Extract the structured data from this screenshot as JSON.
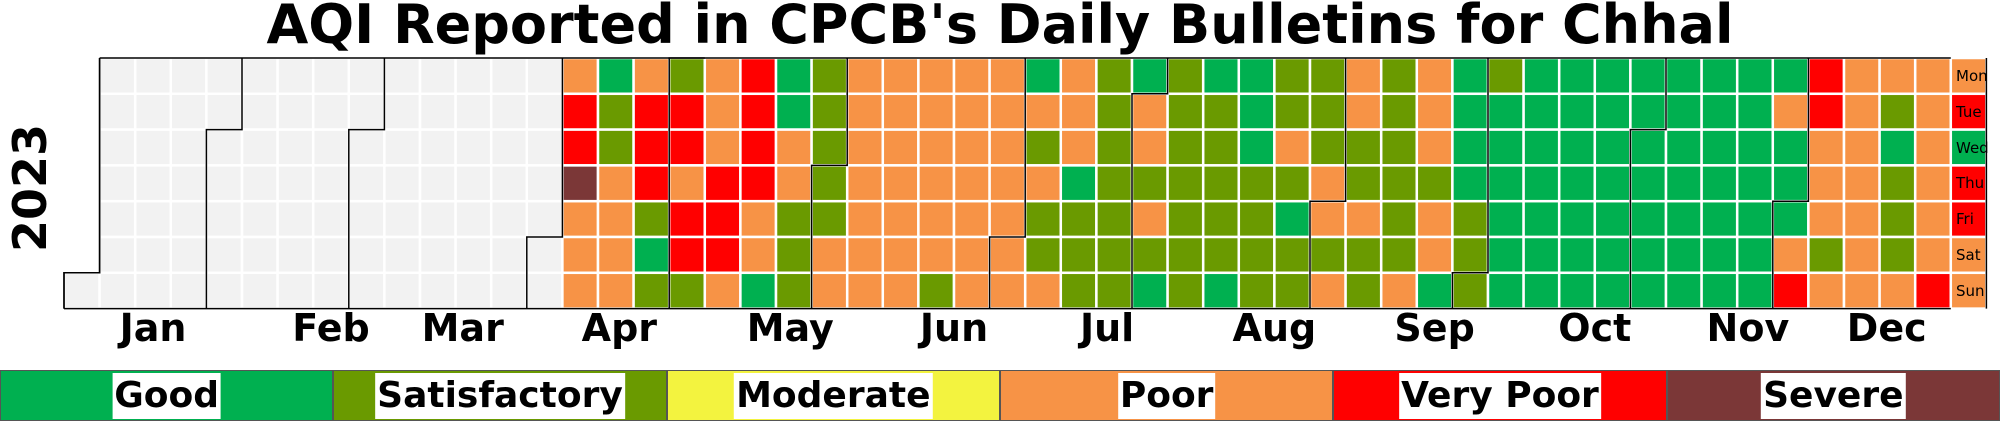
{
  "chart_data": {
    "type": "heatmap",
    "title": "AQI Reported in CPCB's Daily Bulletins for Chhal",
    "year": "2023",
    "months": [
      "Jan",
      "Feb",
      "Mar",
      "Apr",
      "May",
      "Jun",
      "Jul",
      "Aug",
      "Sep",
      "Oct",
      "Nov",
      "Dec"
    ],
    "weekdays": [
      "Mon",
      "Tue",
      "Wed",
      "Thu",
      "Fri",
      "Sat",
      "Sun"
    ],
    "categories": [
      "Good",
      "Satisfactory",
      "Moderate",
      "Poor",
      "Very Poor",
      "Severe"
    ],
    "colors": {
      "Good": "#00b050",
      "Satisfactory": "#6a9a00",
      "Moderate": "#f3f33f",
      "Poor": "#f79346",
      "Very Poor": "#ff0000",
      "Severe": "#7b3737",
      "No data": "#f2f2f2"
    },
    "week_columns": [
      "-------",
      "-------",
      "-------",
      "-------",
      "-------",
      "-------",
      "-------",
      "-------",
      "-------",
      "-------",
      "-------",
      "-------",
      "-------",
      "-------",
      "PVVSPPP",
      "GSSPPPP",
      "PVVVSGS",
      "SVVPVVS",
      "PPPVVVP",
      "VVVVPPG",
      "GGPPSSS",
      "SSSSSPP",
      "PPPPPPP",
      "PPPPPPP",
      "PPPPPPS",
      "PPPPPPP",
      "PPPPPPP",
      "GPSPSSP",
      "PPPGSSS",
      "SSSSSSS",
      "GPPSPSG",
      "SSSSSSS",
      "GSSSSSG",
      "GGGSSSS",
      "SSPSGSS",
      "SSSPPSP",
      "PPSSPSS",
      "SSSSSSP",
      "PPPSPPG",
      "GGGGSSS",
      "SGGGGGG",
      "GGGGGGG",
      "GGGGGGG",
      "GGGGGGG",
      "GGGGGGG",
      "GGGGGGG",
      "GGGGGGG",
      "GGGGGGG",
      "GPGGGPV",
      "VVPPPSP",
      "PPPPPPP",
      "PSGSSSP",
      "PPPPPPV",
      "PVGVVPP"
    ]
  },
  "legend": [
    {
      "label": "Good",
      "color": "#00b050"
    },
    {
      "label": "Satisfactory",
      "color": "#6a9a00"
    },
    {
      "label": "Moderate",
      "color": "#f3f33f"
    },
    {
      "label": "Poor",
      "color": "#f79346"
    },
    {
      "label": "Very Poor",
      "color": "#ff0000"
    },
    {
      "label": "Severe",
      "color": "#7b3737"
    }
  ]
}
